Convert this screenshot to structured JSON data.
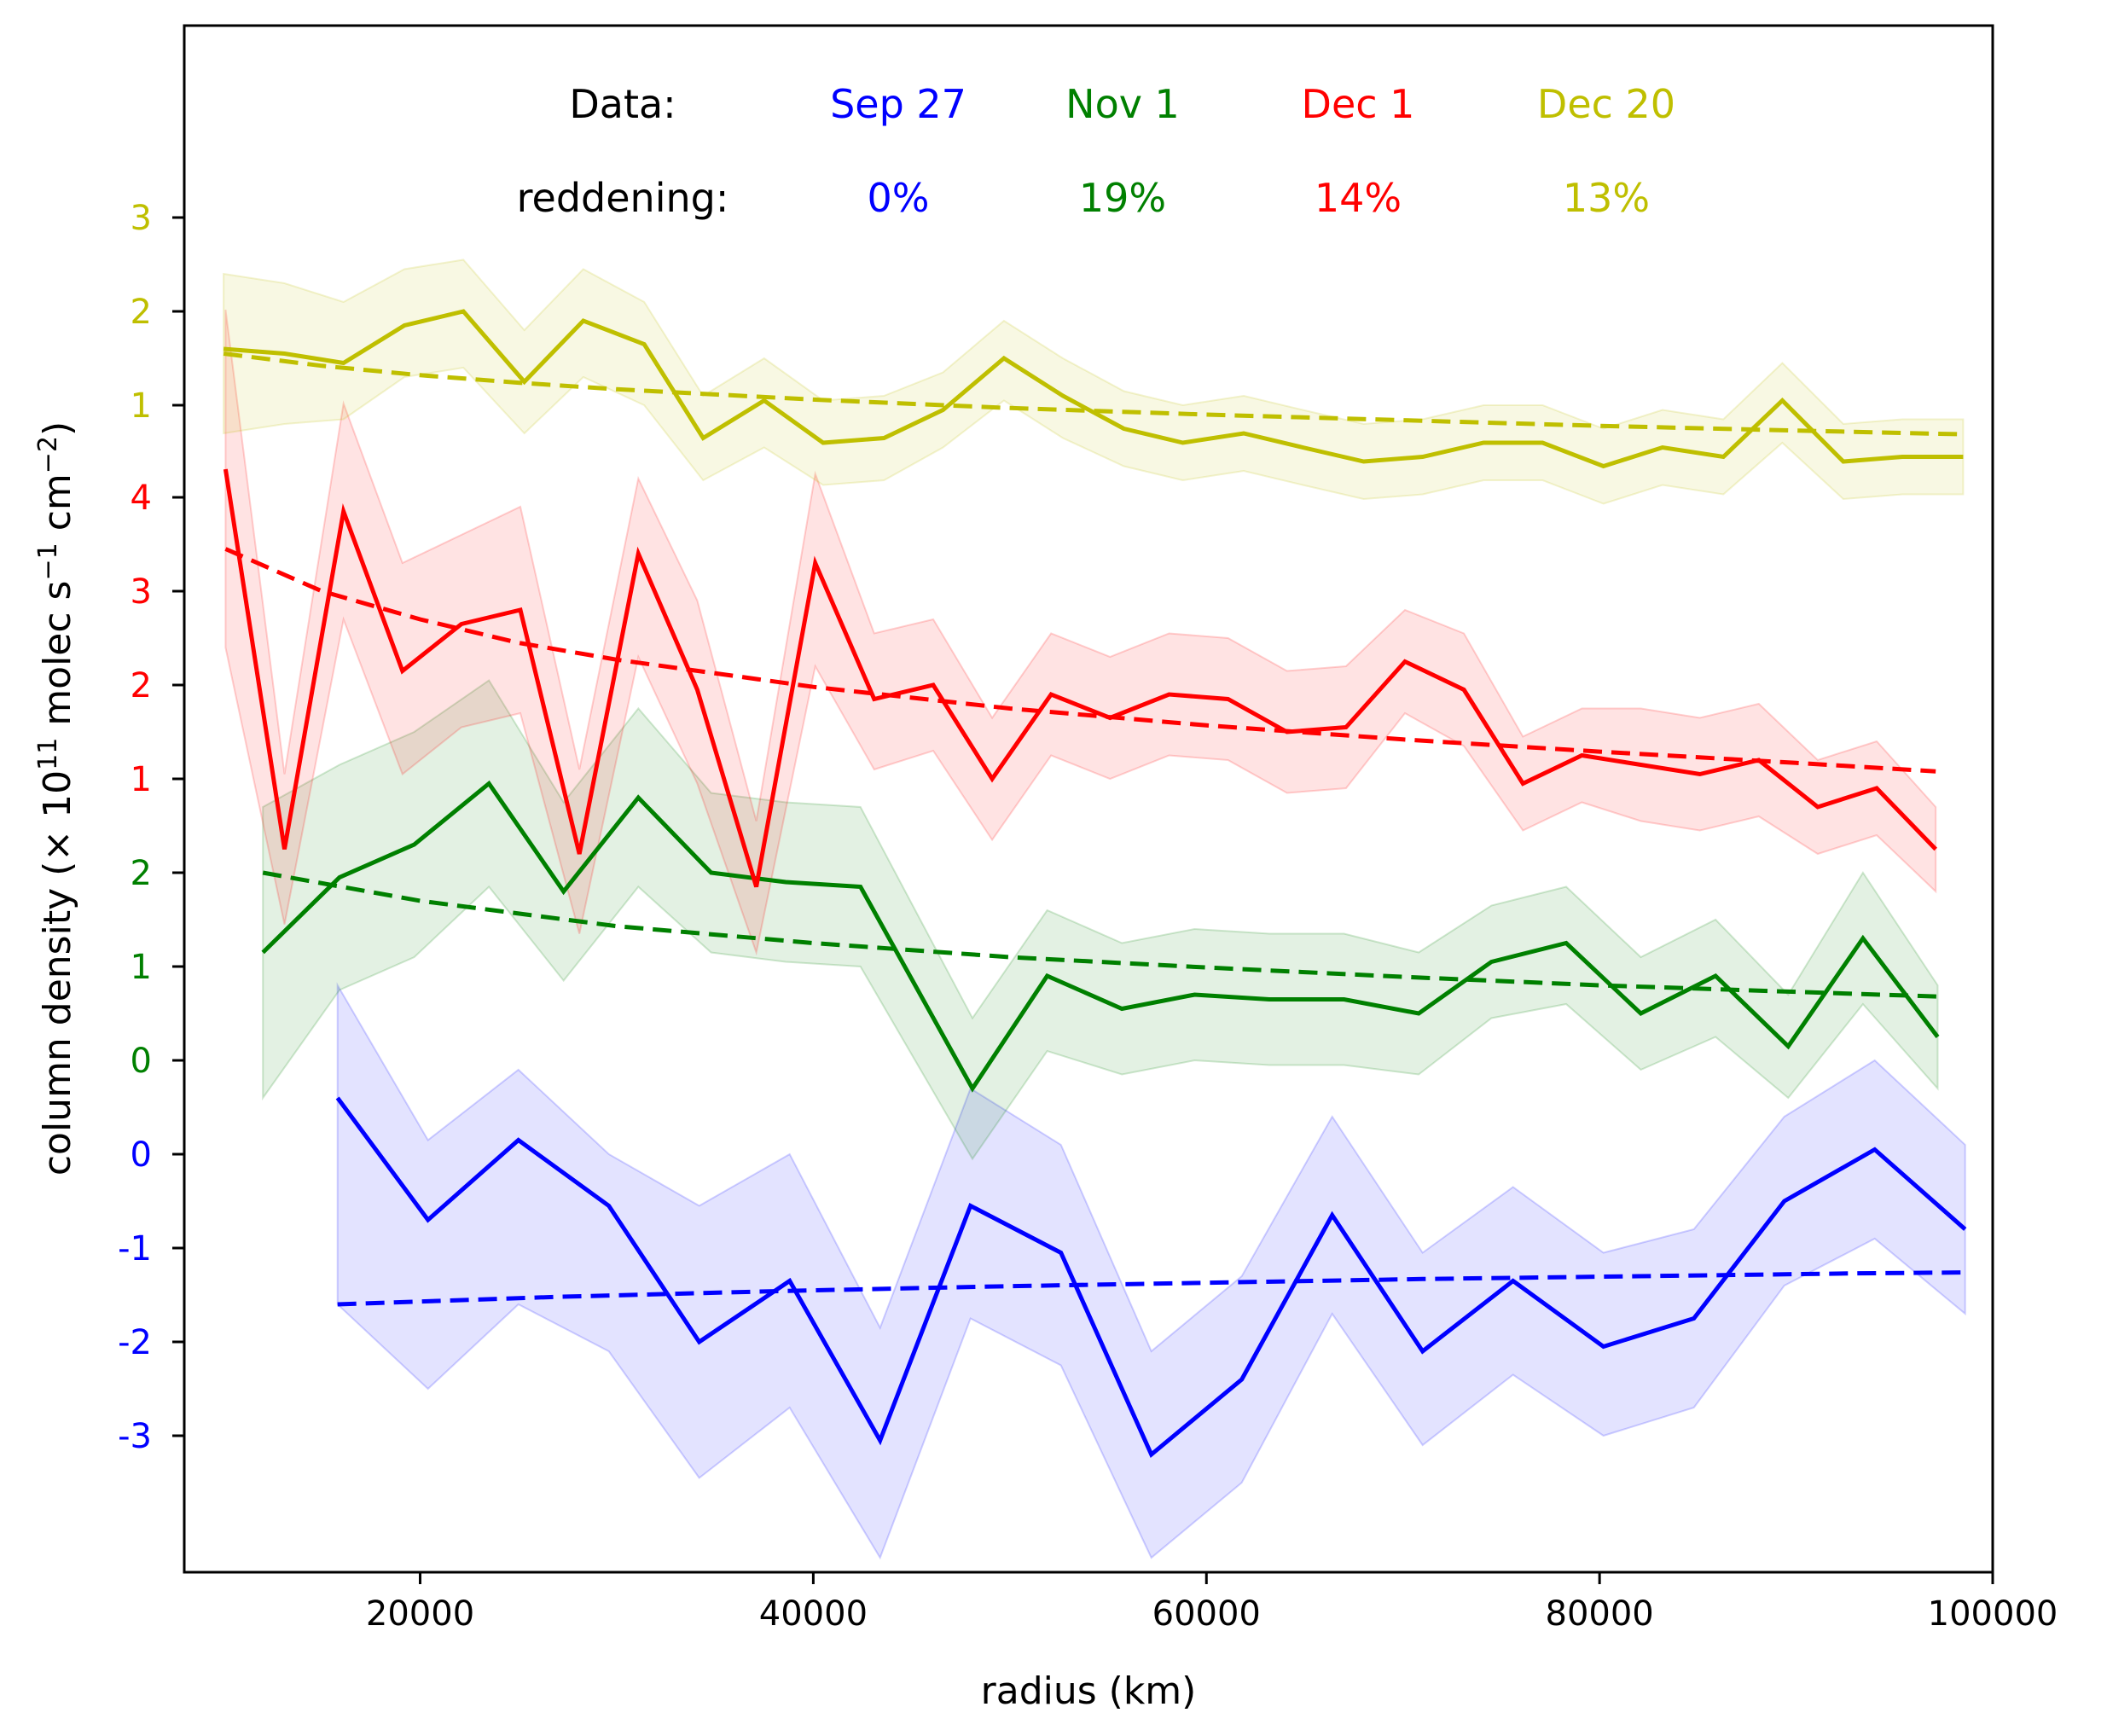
{
  "chart_data": {
    "type": "line",
    "xlabel": "radius (km)",
    "ylabel_parts": [
      "column density (× 10",
      "11",
      " molec s",
      "−1",
      " cm",
      "−2",
      ")"
    ],
    "xlim": [
      8000,
      100000
    ],
    "x_ticks": [
      20000,
      40000,
      60000,
      80000,
      100000
    ],
    "x_tick_labels": [
      "20000",
      "40000",
      "60000",
      "80000",
      "100000"
    ],
    "grid": false,
    "legend": {
      "row_labels": [
        "Data:",
        "reddening:"
      ],
      "entries": [
        {
          "date": "Sep 27",
          "reddening": "0%",
          "color": "#0000ff"
        },
        {
          "date": "Nov 1",
          "reddening": "19%",
          "color": "#008000"
        },
        {
          "date": "Dec 1",
          "reddening": "14%",
          "color": "#ff0000"
        },
        {
          "date": "Dec 20",
          "reddening": "13%",
          "color": "#bfbf00"
        }
      ]
    },
    "stacked_offsets": {
      "tick_groups": [
        {
          "series": "Sep 27",
          "color": "#0000ff",
          "ticks": [
            {
              "value": 0,
              "label": "0"
            },
            {
              "value": -1,
              "label": "-1"
            },
            {
              "value": -2,
              "label": "-2"
            },
            {
              "value": -3,
              "label": "-3"
            }
          ]
        },
        {
          "series": "Nov 1",
          "color": "#008000",
          "ticks": [
            {
              "value": 0,
              "label": "0"
            },
            {
              "value": 1,
              "label": "1"
            },
            {
              "value": 2,
              "label": "2"
            }
          ]
        },
        {
          "series": "Dec 1",
          "color": "#ff0000",
          "ticks": [
            {
              "value": 1,
              "label": "1"
            },
            {
              "value": 2,
              "label": "2"
            },
            {
              "value": 3,
              "label": "3"
            },
            {
              "value": 4,
              "label": "4"
            }
          ]
        },
        {
          "series": "Dec 20",
          "color": "#bfbf00",
          "ticks": [
            {
              "value": 1,
              "label": "1"
            },
            {
              "value": 2,
              "label": "2"
            },
            {
              "value": 3,
              "label": "3"
            }
          ]
        }
      ]
    },
    "series": [
      {
        "date": "Sep 27",
        "color": "#0000ff",
        "x": [
          15800,
          20400,
          25000,
          29600,
          34200,
          38800,
          43400,
          48000,
          52600,
          57200,
          61800,
          66400,
          71000,
          75600,
          80200,
          84800,
          89400,
          94000,
          98600
        ],
        "y": [
          0.6,
          -0.7,
          0.15,
          -0.55,
          -2.0,
          -1.35,
          -3.05,
          -0.55,
          -1.05,
          -3.2,
          -2.4,
          -0.65,
          -2.1,
          -1.35,
          -2.05,
          -1.75,
          -0.5,
          0.05,
          -0.8
        ],
        "y_low": [
          -1.6,
          -2.5,
          -1.6,
          -2.1,
          -3.45,
          -2.7,
          -4.3,
          -1.75,
          -2.25,
          -4.3,
          -3.5,
          -1.7,
          -3.1,
          -2.35,
          -3.0,
          -2.7,
          -1.4,
          -0.9,
          -1.7
        ],
        "y_high": [
          1.8,
          0.15,
          0.9,
          0.0,
          -0.55,
          0.0,
          -1.85,
          0.7,
          0.1,
          -2.1,
          -1.3,
          0.4,
          -1.05,
          -0.35,
          -1.05,
          -0.8,
          0.4,
          1.0,
          0.1
        ],
        "fit_x": [
          15800,
          27000,
          38000,
          49000,
          60000,
          71000,
          82000,
          93000,
          98600
        ],
        "fit_y": [
          -1.6,
          -1.52,
          -1.46,
          -1.41,
          -1.37,
          -1.33,
          -1.3,
          -1.27,
          -1.26
        ]
      },
      {
        "date": "Nov 1",
        "color": "#008000",
        "x": [
          12000,
          15900,
          19700,
          23500,
          27300,
          31100,
          34800,
          38600,
          42400,
          48100,
          51900,
          55700,
          59400,
          63200,
          67000,
          70800,
          74500,
          78300,
          82100,
          85900,
          89600,
          93400,
          97200
        ],
        "y": [
          1.15,
          1.95,
          2.3,
          2.95,
          1.8,
          2.8,
          2.0,
          1.9,
          1.85,
          -0.3,
          0.9,
          0.55,
          0.7,
          0.65,
          0.65,
          0.5,
          1.05,
          1.25,
          0.5,
          0.9,
          0.15,
          1.3,
          0.25
        ],
        "y_low": [
          -0.4,
          0.75,
          1.1,
          1.85,
          0.85,
          1.85,
          1.15,
          1.05,
          1.0,
          -1.05,
          0.1,
          -0.15,
          0.0,
          -0.05,
          -0.05,
          -0.15,
          0.45,
          0.6,
          -0.1,
          0.25,
          -0.4,
          0.6,
          -0.3
        ],
        "y_high": [
          2.7,
          3.15,
          3.5,
          4.05,
          2.75,
          3.75,
          2.85,
          2.75,
          2.7,
          0.45,
          1.6,
          1.25,
          1.4,
          1.35,
          1.35,
          1.15,
          1.65,
          1.85,
          1.1,
          1.5,
          0.7,
          2.0,
          0.8
        ],
        "fit_x": [
          12000,
          20000,
          30000,
          40000,
          50000,
          60000,
          70000,
          80000,
          90000,
          97200
        ],
        "fit_y": [
          2.0,
          1.7,
          1.43,
          1.25,
          1.1,
          0.99,
          0.89,
          0.8,
          0.73,
          0.68
        ]
      },
      {
        "date": "Dec 1",
        "color": "#ff0000",
        "x": [
          10100,
          13100,
          16100,
          19100,
          22100,
          25100,
          28100,
          31100,
          34100,
          37100,
          40100,
          43100,
          46100,
          49100,
          52100,
          55100,
          58100,
          61100,
          64100,
          67100,
          70100,
          73100,
          76100,
          79100,
          82100,
          85100,
          88100,
          91100,
          94100,
          97100
        ],
        "y": [
          4.3,
          0.25,
          3.85,
          2.15,
          2.65,
          2.8,
          0.2,
          3.4,
          1.95,
          -0.15,
          3.3,
          1.85,
          2.0,
          1.0,
          1.9,
          1.65,
          1.9,
          1.85,
          1.5,
          1.55,
          2.25,
          1.95,
          0.95,
          1.25,
          1.15,
          1.05,
          1.2,
          0.7,
          0.9,
          0.25
        ],
        "y_low": [
          2.4,
          -0.55,
          2.7,
          1.05,
          1.55,
          1.7,
          -0.65,
          2.3,
          0.95,
          -0.85,
          2.2,
          1.1,
          1.3,
          0.35,
          1.25,
          1.0,
          1.25,
          1.2,
          0.85,
          0.9,
          1.7,
          1.35,
          0.45,
          0.75,
          0.55,
          0.45,
          0.6,
          0.2,
          0.4,
          -0.2
        ],
        "y_high": [
          6.0,
          1.05,
          5.0,
          3.3,
          3.6,
          3.9,
          1.1,
          4.2,
          2.9,
          0.55,
          4.25,
          2.55,
          2.7,
          1.65,
          2.55,
          2.3,
          2.55,
          2.5,
          2.15,
          2.2,
          2.8,
          2.55,
          1.45,
          1.75,
          1.75,
          1.65,
          1.8,
          1.2,
          1.4,
          0.7
        ],
        "fit_x": [
          10100,
          15000,
          20000,
          25000,
          30000,
          40000,
          50000,
          60000,
          70000,
          80000,
          90000,
          97100
        ],
        "fit_y": [
          3.45,
          3.0,
          2.7,
          2.45,
          2.27,
          1.98,
          1.75,
          1.57,
          1.42,
          1.29,
          1.17,
          1.08
        ]
      },
      {
        "date": "Dec 20",
        "color": "#bfbf00",
        "x": [
          10000,
          13100,
          16100,
          19200,
          22200,
          25300,
          28300,
          31400,
          34400,
          37500,
          40500,
          43600,
          46600,
          49700,
          52700,
          55800,
          58800,
          61900,
          64900,
          68000,
          71000,
          74100,
          77100,
          80200,
          83200,
          86300,
          89300,
          92400,
          95400,
          98500
        ],
        "y": [
          1.6,
          1.55,
          1.45,
          1.85,
          2.0,
          1.25,
          1.9,
          1.65,
          0.65,
          1.05,
          0.6,
          0.65,
          0.95,
          1.5,
          1.1,
          0.75,
          0.6,
          0.7,
          0.55,
          0.4,
          0.45,
          0.6,
          0.6,
          0.35,
          0.55,
          0.45,
          1.05,
          0.4,
          0.45,
          0.45
        ],
        "y_low": [
          0.7,
          0.8,
          0.85,
          1.3,
          1.4,
          0.7,
          1.3,
          1.0,
          0.2,
          0.55,
          0.15,
          0.2,
          0.55,
          1.05,
          0.65,
          0.35,
          0.2,
          0.3,
          0.15,
          0.0,
          0.05,
          0.2,
          0.2,
          -0.05,
          0.15,
          0.05,
          0.6,
          0.0,
          0.05,
          0.05
        ],
        "y_high": [
          2.4,
          2.3,
          2.1,
          2.45,
          2.55,
          1.8,
          2.45,
          2.1,
          1.1,
          1.5,
          1.05,
          1.1,
          1.35,
          1.9,
          1.5,
          1.15,
          1.0,
          1.1,
          0.95,
          0.8,
          0.85,
          1.0,
          1.0,
          0.75,
          0.95,
          0.85,
          1.45,
          0.8,
          0.85,
          0.85
        ],
        "fit_x": [
          10000,
          15000,
          20000,
          25000,
          30000,
          40000,
          50000,
          60000,
          70000,
          80000,
          90000,
          98500
        ],
        "fit_y": [
          1.55,
          1.42,
          1.32,
          1.24,
          1.17,
          1.06,
          0.97,
          0.9,
          0.84,
          0.78,
          0.73,
          0.69
        ]
      }
    ]
  }
}
